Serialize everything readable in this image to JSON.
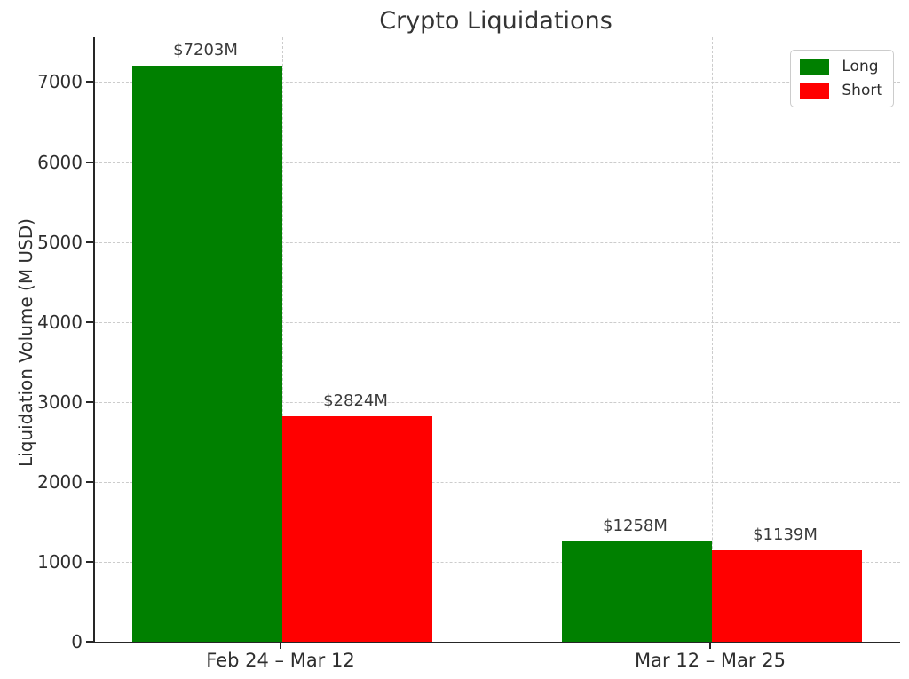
{
  "chart_data": {
    "type": "bar",
    "title": "Crypto Liquidations",
    "xlabel": "",
    "ylabel": "Liquidation Volume (M USD)",
    "categories": [
      "Feb 24 – Mar 12",
      "Mar 12 – Mar 25"
    ],
    "series": [
      {
        "name": "Long",
        "color": "#008000",
        "values": [
          7203,
          1258
        ],
        "value_labels": [
          "$7203M",
          "$1258M"
        ]
      },
      {
        "name": "Short",
        "color": "#ff0000",
        "values": [
          2824,
          1139
        ],
        "value_labels": [
          "$2824M",
          "$1139M"
        ]
      }
    ],
    "ylim": [
      0,
      7560
    ],
    "yticks": [
      0,
      1000,
      2000,
      3000,
      4000,
      5000,
      6000,
      7000
    ],
    "grid": true,
    "grid_style": "dashed",
    "grid_color": "#cccccc",
    "legend": {
      "position": "upper right",
      "entries": [
        "Long",
        "Short"
      ]
    }
  }
}
